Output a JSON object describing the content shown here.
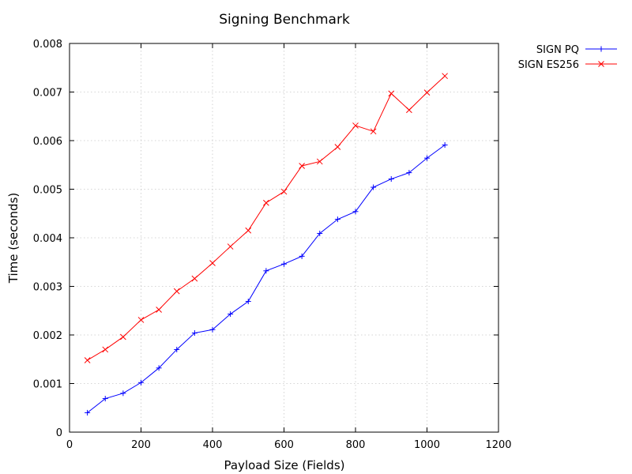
{
  "chart_data": {
    "type": "line",
    "title": "Signing Benchmark",
    "xlabel": "Payload Size (Fields)",
    "ylabel": "Time (seconds)",
    "xlim": [
      0,
      1200
    ],
    "ylim": [
      0,
      0.008
    ],
    "x_ticks": [
      "0",
      "200",
      "400",
      "600",
      "800",
      "1000",
      "1200"
    ],
    "y_ticks": [
      "0",
      "0.001",
      "0.002",
      "0.003",
      "0.004",
      "0.005",
      "0.006",
      "0.007",
      "0.008"
    ],
    "x_tick_values": [
      0,
      200,
      400,
      600,
      800,
      1000,
      1200
    ],
    "y_tick_values": [
      0,
      0.001,
      0.002,
      0.003,
      0.004,
      0.005,
      0.006,
      0.007,
      0.008
    ],
    "grid": true,
    "legend_position": "outside-top-right",
    "x": [
      50,
      100,
      150,
      200,
      250,
      300,
      350,
      400,
      450,
      500,
      550,
      600,
      650,
      700,
      750,
      800,
      850,
      900,
      950,
      1000,
      1050
    ],
    "series": [
      {
        "name": "SIGN PQ",
        "color": "#0000ff",
        "marker": "plus",
        "values": [
          0.0004,
          0.00069,
          0.0008,
          0.00102,
          0.00132,
          0.0017,
          0.00204,
          0.00211,
          0.00243,
          0.00269,
          0.00332,
          0.00346,
          0.00362,
          0.00409,
          0.00438,
          0.00454,
          0.00504,
          0.00521,
          0.00534,
          0.00564,
          0.00591
        ]
      },
      {
        "name": "SIGN ES256",
        "color": "#ff0000",
        "marker": "cross",
        "values": [
          0.00148,
          0.0017,
          0.00196,
          0.00231,
          0.00252,
          0.0029,
          0.00316,
          0.00348,
          0.00382,
          0.00415,
          0.00472,
          0.00495,
          0.00548,
          0.00557,
          0.00587,
          0.00631,
          0.00619,
          0.00697,
          0.00663,
          0.00699,
          0.00733
        ]
      }
    ]
  }
}
